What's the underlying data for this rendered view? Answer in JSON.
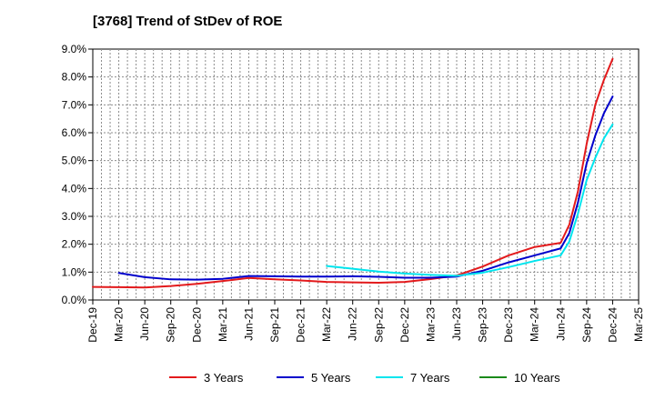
{
  "chart_data": {
    "type": "line",
    "title": "[3768]  Trend of StDev of ROE",
    "xlabel": "",
    "ylabel": "",
    "ylim": [
      0,
      9
    ],
    "yticks": [
      "0.0%",
      "1.0%",
      "2.0%",
      "3.0%",
      "4.0%",
      "5.0%",
      "6.0%",
      "7.0%",
      "8.0%",
      "9.0%"
    ],
    "xticks": [
      "Dec-19",
      "Mar-20",
      "Jun-20",
      "Sep-20",
      "Dec-20",
      "Mar-21",
      "Jun-21",
      "Sep-21",
      "Dec-21",
      "Mar-22",
      "Jun-22",
      "Sep-22",
      "Dec-22",
      "Mar-23",
      "Jun-23",
      "Sep-23",
      "Dec-23",
      "Mar-24",
      "Jun-24",
      "Sep-24",
      "Dec-24",
      "Mar-25"
    ],
    "grid": true,
    "legend_position": "bottom",
    "series": [
      {
        "name": "3 Years",
        "color": "#e31a1c",
        "points": [
          [
            "Dec-19",
            0.47
          ],
          [
            "Mar-20",
            0.46
          ],
          [
            "Jun-20",
            0.45
          ],
          [
            "Sep-20",
            0.5
          ],
          [
            "Dec-20",
            0.58
          ],
          [
            "Mar-21",
            0.68
          ],
          [
            "Jun-21",
            0.79
          ],
          [
            "Sep-21",
            0.74
          ],
          [
            "Dec-21",
            0.7
          ],
          [
            "Mar-22",
            0.65
          ],
          [
            "Jun-22",
            0.63
          ],
          [
            "Sep-22",
            0.62
          ],
          [
            "Dec-22",
            0.65
          ],
          [
            "Mar-23",
            0.75
          ],
          [
            "Jun-23",
            0.88
          ],
          [
            "Sep-23",
            1.2
          ],
          [
            "Dec-23",
            1.6
          ],
          [
            "Mar-24",
            1.9
          ],
          [
            "Jun-24",
            2.05
          ],
          [
            "Jul-24",
            2.7
          ],
          [
            "Aug-24",
            3.9
          ],
          [
            "Sep-24",
            5.6
          ],
          [
            "Oct-24",
            7.0
          ],
          [
            "Nov-24",
            7.9
          ],
          [
            "Dec-24",
            8.65
          ]
        ]
      },
      {
        "name": "5 Years",
        "color": "#0000cc",
        "points": [
          [
            "Mar-20",
            0.97
          ],
          [
            "Jun-20",
            0.82
          ],
          [
            "Sep-20",
            0.74
          ],
          [
            "Dec-20",
            0.73
          ],
          [
            "Mar-21",
            0.76
          ],
          [
            "Jun-21",
            0.86
          ],
          [
            "Sep-21",
            0.85
          ],
          [
            "Dec-21",
            0.84
          ],
          [
            "Mar-22",
            0.84
          ],
          [
            "Jun-22",
            0.85
          ],
          [
            "Sep-22",
            0.83
          ],
          [
            "Dec-22",
            0.8
          ],
          [
            "Mar-23",
            0.8
          ],
          [
            "Jun-23",
            0.84
          ],
          [
            "Sep-23",
            1.05
          ],
          [
            "Dec-23",
            1.35
          ],
          [
            "Mar-24",
            1.6
          ],
          [
            "Jun-24",
            1.85
          ],
          [
            "Jul-24",
            2.4
          ],
          [
            "Aug-24",
            3.5
          ],
          [
            "Sep-24",
            4.9
          ],
          [
            "Oct-24",
            5.9
          ],
          [
            "Nov-24",
            6.7
          ],
          [
            "Dec-24",
            7.3
          ]
        ]
      },
      {
        "name": "7 Years",
        "color": "#00e5ee",
        "points": [
          [
            "Mar-22",
            1.22
          ],
          [
            "Jun-22",
            1.12
          ],
          [
            "Sep-22",
            1.02
          ],
          [
            "Dec-22",
            0.95
          ],
          [
            "Mar-23",
            0.9
          ],
          [
            "Jun-23",
            0.87
          ],
          [
            "Sep-23",
            0.98
          ],
          [
            "Dec-23",
            1.18
          ],
          [
            "Mar-24",
            1.4
          ],
          [
            "Jun-24",
            1.6
          ],
          [
            "Jul-24",
            2.1
          ],
          [
            "Aug-24",
            3.1
          ],
          [
            "Sep-24",
            4.3
          ],
          [
            "Oct-24",
            5.1
          ],
          [
            "Nov-24",
            5.8
          ],
          [
            "Dec-24",
            6.3
          ]
        ]
      },
      {
        "name": "10 Years",
        "color": "#1a8a1a",
        "points": []
      }
    ]
  }
}
